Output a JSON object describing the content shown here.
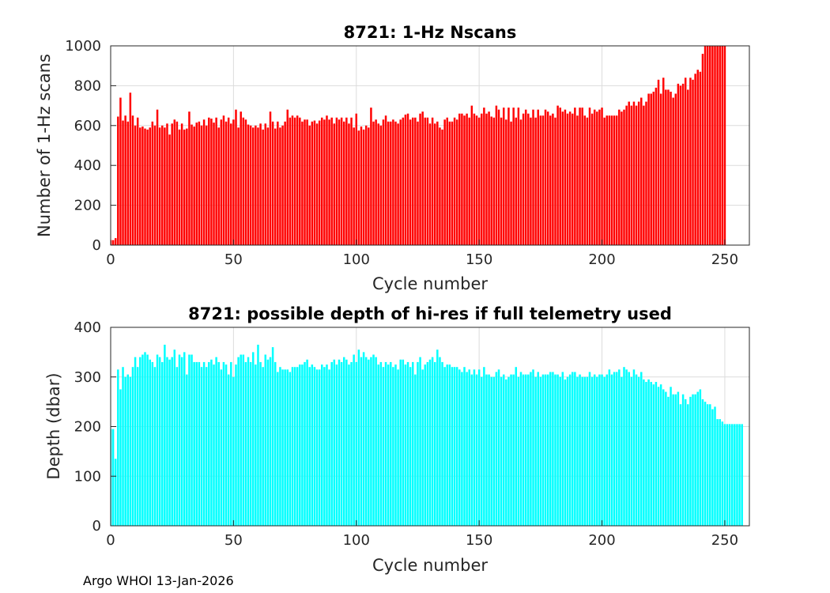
{
  "footer": "Argo WHOI 13-Jan-2026",
  "colors": {
    "top_bars": "#ff0000",
    "bottom_bars": "#00ffff",
    "grid": "#dcdcdc",
    "axis": "#262626"
  },
  "chart_data": [
    {
      "type": "bar",
      "title": "8721: 1-Hz Nscans",
      "xlabel": "Cycle number",
      "ylabel": "Number of 1-Hz scans",
      "xlim": [
        0,
        260
      ],
      "ylim": [
        0,
        1000
      ],
      "xticks": [
        "0",
        "50",
        "100",
        "150",
        "200",
        "250"
      ],
      "yticks": [
        "0",
        "200",
        "400",
        "600",
        "800",
        "1000"
      ],
      "grid": true,
      "x_start": 0,
      "color": "#ff0000",
      "values": [
        25,
        25,
        35,
        645,
        740,
        625,
        650,
        620,
        765,
        650,
        600,
        640,
        590,
        595,
        585,
        580,
        590,
        620,
        600,
        680,
        590,
        600,
        590,
        610,
        555,
        610,
        630,
        620,
        580,
        610,
        580,
        585,
        670,
        605,
        595,
        615,
        620,
        600,
        630,
        600,
        640,
        635,
        615,
        640,
        590,
        630,
        650,
        620,
        640,
        610,
        630,
        680,
        590,
        670,
        640,
        630,
        605,
        600,
        590,
        600,
        590,
        610,
        580,
        610,
        590,
        670,
        620,
        585,
        620,
        590,
        600,
        620,
        680,
        640,
        650,
        640,
        650,
        640,
        620,
        630,
        630,
        600,
        620,
        625,
        610,
        625,
        640,
        630,
        650,
        630,
        640,
        610,
        640,
        630,
        640,
        620,
        640,
        610,
        640,
        590,
        660,
        575,
        595,
        580,
        600,
        590,
        690,
        620,
        630,
        610,
        600,
        630,
        650,
        620,
        620,
        630,
        620,
        610,
        630,
        640,
        655,
        660,
        630,
        640,
        640,
        620,
        660,
        670,
        640,
        640,
        610,
        640,
        610,
        620,
        590,
        580,
        630,
        640,
        620,
        620,
        640,
        630,
        660,
        660,
        650,
        660,
        640,
        700,
        660,
        650,
        640,
        660,
        690,
        660,
        670,
        645,
        640,
        700,
        680,
        640,
        690,
        630,
        690,
        620,
        690,
        640,
        690,
        630,
        660,
        680,
        660,
        640,
        680,
        640,
        680,
        650,
        650,
        680,
        670,
        650,
        660,
        640,
        700,
        690,
        670,
        680,
        660,
        670,
        660,
        690,
        650,
        690,
        690,
        650,
        640,
        690,
        660,
        680,
        670,
        680,
        690,
        640,
        650,
        650,
        650,
        650,
        650,
        680,
        670,
        680,
        700,
        720,
        700,
        720,
        700,
        720,
        740,
        700,
        720,
        760,
        760,
        770,
        790,
        830,
        760,
        840,
        780,
        780,
        770,
        740,
        760,
        810,
        800,
        810,
        840,
        780,
        840,
        830,
        860,
        880,
        870,
        960,
        1000,
        1000,
        1000,
        1000,
        1000,
        1000,
        1000,
        1000,
        1000
      ]
    },
    {
      "type": "bar",
      "title": "8721: possible depth of hi-res if full telemetry used",
      "xlabel": "Cycle number",
      "ylabel": "Depth (dbar)",
      "xlim": [
        0,
        260
      ],
      "ylim": [
        0,
        400
      ],
      "xticks": [
        "0",
        "50",
        "100",
        "150",
        "200",
        "250"
      ],
      "yticks": [
        "0",
        "100",
        "200",
        "300",
        "400"
      ],
      "grid": true,
      "x_start": 0,
      "color": "#00ffff",
      "values": [
        195,
        195,
        135,
        315,
        275,
        320,
        300,
        305,
        300,
        320,
        340,
        320,
        340,
        345,
        350,
        345,
        335,
        330,
        320,
        345,
        340,
        330,
        365,
        340,
        335,
        340,
        355,
        320,
        345,
        340,
        350,
        305,
        345,
        345,
        330,
        330,
        330,
        320,
        330,
        320,
        330,
        335,
        325,
        340,
        330,
        315,
        330,
        325,
        305,
        330,
        300,
        325,
        340,
        345,
        345,
        330,
        340,
        330,
        350,
        325,
        365,
        330,
        320,
        345,
        335,
        340,
        360,
        330,
        310,
        320,
        315,
        315,
        315,
        310,
        320,
        320,
        320,
        325,
        325,
        330,
        335,
        320,
        325,
        320,
        315,
        315,
        325,
        320,
        325,
        315,
        330,
        335,
        325,
        335,
        330,
        340,
        335,
        325,
        330,
        345,
        330,
        355,
        340,
        350,
        340,
        335,
        340,
        345,
        340,
        325,
        330,
        320,
        330,
        325,
        330,
        320,
        325,
        315,
        335,
        335,
        325,
        330,
        320,
        330,
        305,
        330,
        340,
        315,
        325,
        330,
        335,
        340,
        330,
        355,
        340,
        330,
        320,
        325,
        325,
        320,
        320,
        320,
        315,
        310,
        320,
        310,
        315,
        305,
        315,
        305,
        315,
        300,
        320,
        305,
        305,
        300,
        300,
        310,
        315,
        300,
        305,
        295,
        300,
        305,
        305,
        320,
        300,
        310,
        305,
        305,
        305,
        310,
        315,
        300,
        310,
        300,
        305,
        305,
        305,
        310,
        310,
        305,
        305,
        300,
        310,
        295,
        300,
        305,
        310,
        310,
        300,
        305,
        300,
        300,
        300,
        310,
        300,
        305,
        300,
        305,
        305,
        300,
        305,
        315,
        305,
        310,
        310,
        315,
        300,
        320,
        315,
        310,
        300,
        315,
        305,
        300,
        310,
        295,
        290,
        295,
        290,
        285,
        290,
        280,
        285,
        275,
        270,
        260,
        280,
        265,
        265,
        270,
        245,
        265,
        255,
        245,
        260,
        265,
        265,
        270,
        275,
        255,
        250,
        245,
        245,
        235,
        240,
        215,
        215,
        210,
        205,
        205,
        205,
        205,
        205,
        205,
        205,
        205
      ]
    }
  ]
}
